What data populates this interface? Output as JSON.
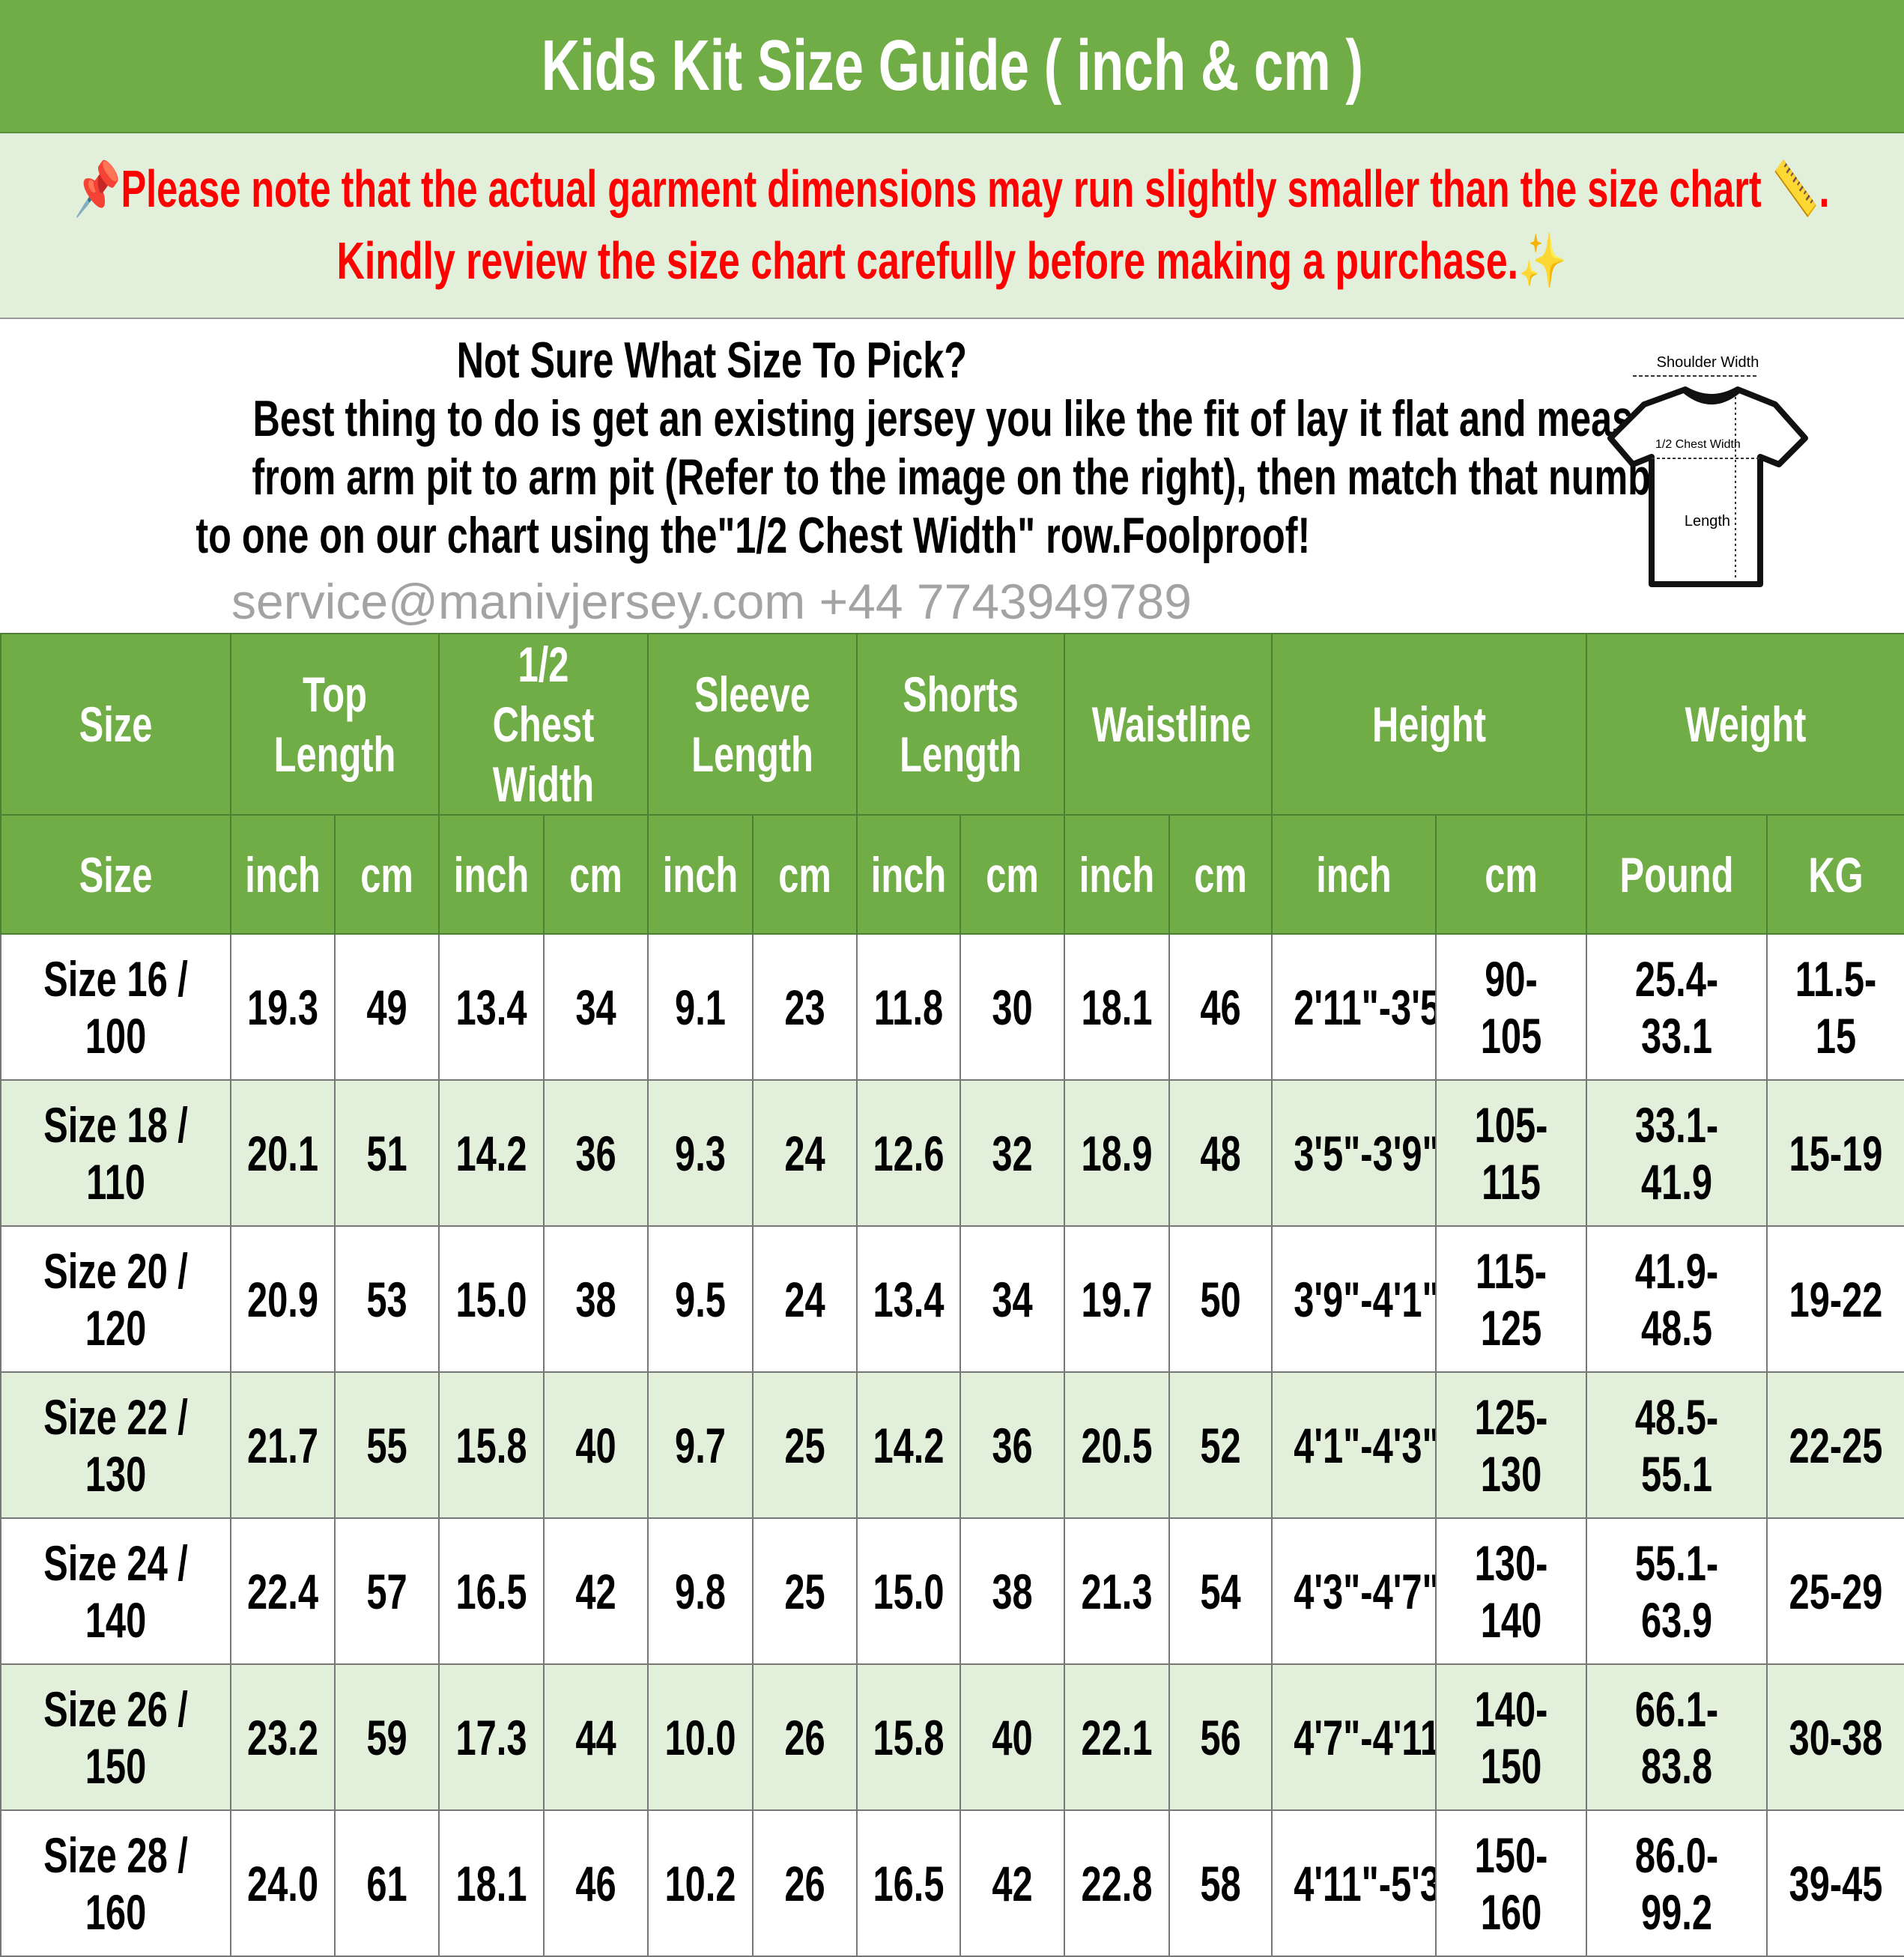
{
  "title": "Kids Kit Size Guide ( inch & cm )",
  "note": {
    "line1": "Please note that the actual garment dimensions may run slightly smaller than the size chart",
    "line2": "Kindly review the size chart carefully before making a purchase.",
    "icons": [
      "pushpin-icon",
      "ruler-icon",
      "sparkle-icon"
    ],
    "color": "#ff0000"
  },
  "intro": {
    "heading": "Not Sure What Size To Pick?",
    "lines": [
      "Best thing to do is get an existing jersey you like the fit of lay it flat and measure",
      "from arm pit to arm pit (Refer to the image on the right), then match that number",
      "to one on our chart using the\"1/2 Chest Width\" row.Foolproof!"
    ]
  },
  "diagram": {
    "shoulder": "Shoulder Width",
    "chest": "1/2 Chest Width",
    "length": "Length"
  },
  "colors": {
    "header_green": "#70ad47",
    "row_alt": "#e2efda"
  },
  "table": {
    "groups": [
      "Size",
      "Top Length",
      "1/2 Chest Width",
      "Sleeve Length",
      "Shorts Length",
      "Waistline",
      "Height",
      "Weight"
    ],
    "units": [
      "Size",
      "inch",
      "cm",
      "inch",
      "cm",
      "inch",
      "cm",
      "inch",
      "cm",
      "inch",
      "cm",
      "inch",
      "cm",
      "Pound",
      "KG"
    ],
    "rows": [
      [
        "Size 16 / 100",
        "19.3",
        "49",
        "13.4",
        "34",
        "9.1",
        "23",
        "11.8",
        "30",
        "18.1",
        "46",
        "2'11\"-3'5\"",
        "90-105",
        "25.4-33.1",
        "11.5-15"
      ],
      [
        "Size 18 / 110",
        "20.1",
        "51",
        "14.2",
        "36",
        "9.3",
        "24",
        "12.6",
        "32",
        "18.9",
        "48",
        "3'5\"-3'9\"",
        "105-115",
        "33.1-41.9",
        "15-19"
      ],
      [
        "Size 20 / 120",
        "20.9",
        "53",
        "15.0",
        "38",
        "9.5",
        "24",
        "13.4",
        "34",
        "19.7",
        "50",
        "3'9\"-4'1\"",
        "115-125",
        "41.9-48.5",
        "19-22"
      ],
      [
        "Size 22 / 130",
        "21.7",
        "55",
        "15.8",
        "40",
        "9.7",
        "25",
        "14.2",
        "36",
        "20.5",
        "52",
        "4'1\"-4'3\"",
        "125-130",
        "48.5-55.1",
        "22-25"
      ],
      [
        "Size 24 / 140",
        "22.4",
        "57",
        "16.5",
        "42",
        "9.8",
        "25",
        "15.0",
        "38",
        "21.3",
        "54",
        "4'3\"-4'7\"",
        "130-140",
        "55.1-63.9",
        "25-29"
      ],
      [
        "Size 26 / 150",
        "23.2",
        "59",
        "17.3",
        "44",
        "10.0",
        "26",
        "15.8",
        "40",
        "22.1",
        "56",
        "4'7\"-4'11\"",
        "140-150",
        "66.1-83.8",
        "30-38"
      ],
      [
        "Size 28 / 160",
        "24.0",
        "61",
        "18.1",
        "46",
        "10.2",
        "26",
        "16.5",
        "42",
        "22.8",
        "58",
        "4'11\"-5'3\"",
        "150-160",
        "86.0-99.2",
        "39-45"
      ]
    ]
  },
  "watermark": "service@manivjersey.com   +44 7743949789"
}
